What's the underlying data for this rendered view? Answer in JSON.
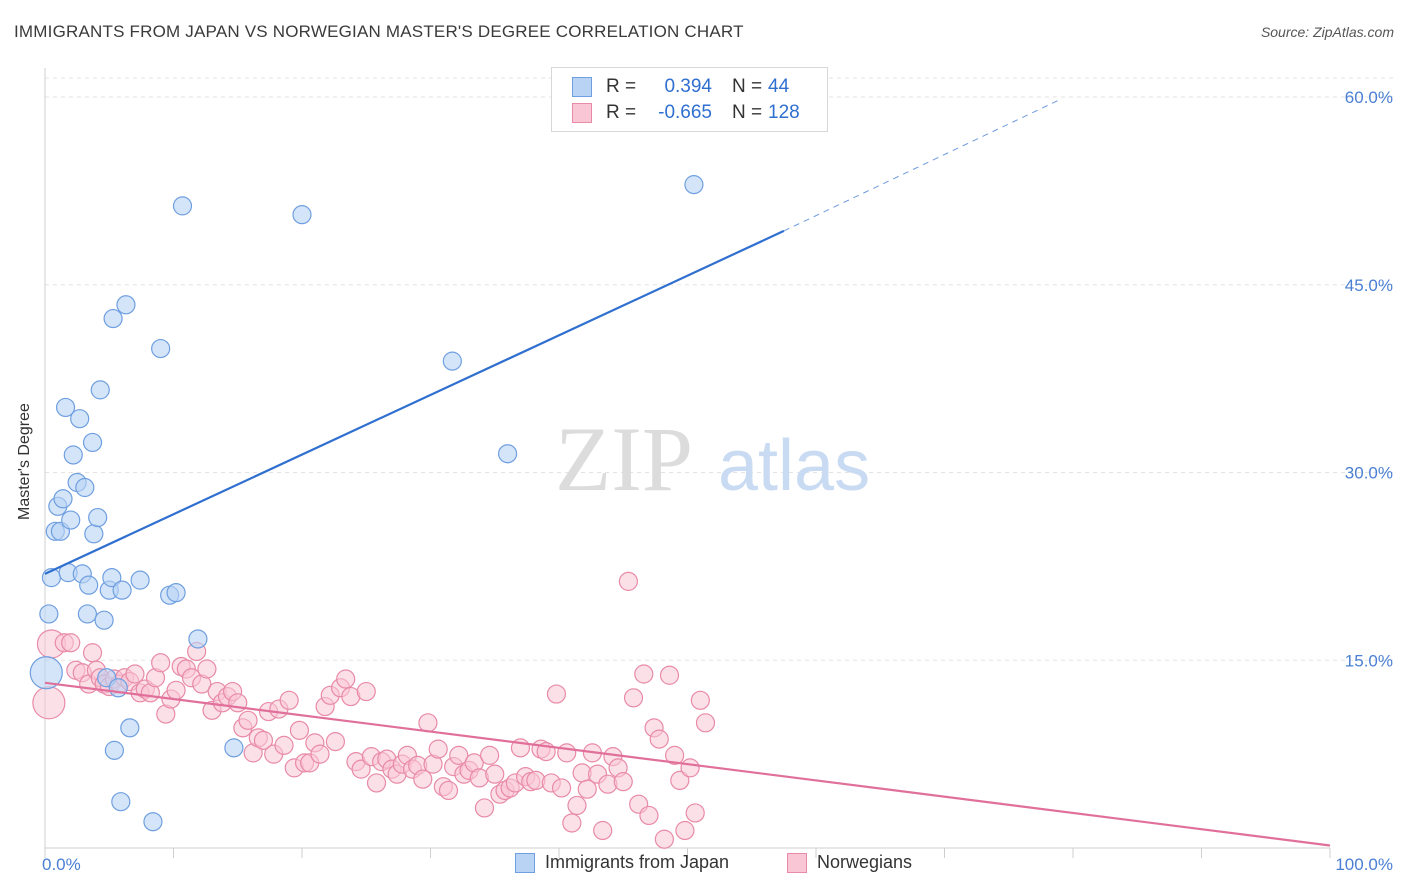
{
  "title": "IMMIGRANTS FROM JAPAN VS NORWEGIAN MASTER'S DEGREE CORRELATION CHART",
  "source": "Source: ZipAtlas.com",
  "watermark": {
    "zip": "ZIP",
    "atlas": "atlas"
  },
  "legend": {
    "rows": [
      {
        "r_label": "R =",
        "r_value": "0.394",
        "n_label": "N =",
        "n_value": "44",
        "color": "#b9d3f5",
        "border": "#6f9fe0"
      },
      {
        "r_label": "R =",
        "r_value": "-0.665",
        "n_label": "N =",
        "n_value": "128",
        "color": "#f9c6d6",
        "border": "#e88aa8"
      }
    ]
  },
  "bottom_legend": [
    "Immigrants from Japan",
    "Norwegians"
  ],
  "colors": {
    "blue_fill": "#b9d3f5",
    "blue_stroke": "#6f9fe0",
    "blue_line": "#2f6fd0",
    "pink_fill": "#f9c6d6",
    "pink_stroke": "#e88aa8",
    "pink_line": "#e0709a",
    "grid": "#e3e3e3",
    "tick_text": "#4a7fd4"
  },
  "chart_data": {
    "type": "scatter",
    "title": "IMMIGRANTS FROM JAPAN VS NORWEGIAN MASTER'S DEGREE CORRELATION CHART",
    "xlabel": "",
    "ylabel": "Master's Degree",
    "xlim": [
      0,
      100
    ],
    "ylim": [
      0,
      60
    ],
    "x_tick_labels": [
      "0.0%",
      "100.0%"
    ],
    "y_ticks": [
      15,
      30,
      45,
      60
    ],
    "y_tick_labels": [
      "15.0%",
      "30.0%",
      "45.0%",
      "60.0%"
    ],
    "grid": true,
    "series": [
      {
        "name": "Immigrants from Japan",
        "points": [
          [
            0.1,
            14.0
          ],
          [
            0.3,
            18.7
          ],
          [
            0.5,
            21.6
          ],
          [
            0.8,
            25.3
          ],
          [
            1.0,
            27.3
          ],
          [
            1.2,
            25.3
          ],
          [
            1.4,
            27.9
          ],
          [
            1.6,
            35.2
          ],
          [
            1.8,
            22.0
          ],
          [
            2.0,
            26.2
          ],
          [
            2.2,
            31.4
          ],
          [
            2.5,
            29.2
          ],
          [
            2.7,
            34.3
          ],
          [
            2.9,
            21.9
          ],
          [
            3.1,
            28.8
          ],
          [
            3.3,
            18.7
          ],
          [
            3.4,
            21.0
          ],
          [
            3.7,
            32.4
          ],
          [
            3.8,
            25.1
          ],
          [
            4.1,
            26.4
          ],
          [
            4.3,
            36.6
          ],
          [
            4.6,
            18.2
          ],
          [
            4.8,
            13.6
          ],
          [
            5.0,
            20.6
          ],
          [
            5.2,
            21.6
          ],
          [
            5.4,
            7.8
          ],
          [
            5.7,
            12.8
          ],
          [
            5.9,
            3.7
          ],
          [
            6.0,
            20.6
          ],
          [
            6.3,
            43.4
          ],
          [
            6.6,
            9.6
          ],
          [
            7.4,
            21.4
          ],
          [
            8.4,
            2.1
          ],
          [
            9.0,
            39.9
          ],
          [
            9.7,
            20.2
          ],
          [
            10.2,
            20.4
          ],
          [
            10.7,
            51.3
          ],
          [
            11.9,
            16.7
          ],
          [
            14.7,
            8.0
          ],
          [
            20.0,
            50.6
          ],
          [
            31.7,
            38.9
          ],
          [
            36.0,
            31.5
          ],
          [
            50.5,
            53.0
          ],
          [
            5.3,
            42.3
          ]
        ],
        "trend": {
          "x0": 0,
          "y0": 21.9,
          "x1": 57.5,
          "y1": 49.3,
          "dash_to_x": 79,
          "dash_to_y": 59.8
        }
      },
      {
        "name": "Norwegians",
        "points": [
          [
            0.3,
            11.6
          ],
          [
            0.5,
            16.3
          ],
          [
            1.5,
            16.4
          ],
          [
            2.0,
            16.4
          ],
          [
            2.4,
            14.2
          ],
          [
            2.9,
            14.0
          ],
          [
            3.4,
            13.1
          ],
          [
            3.7,
            15.6
          ],
          [
            4.0,
            14.2
          ],
          [
            4.3,
            13.6
          ],
          [
            4.6,
            13.1
          ],
          [
            5.0,
            12.9
          ],
          [
            5.4,
            13.5
          ],
          [
            5.8,
            13.1
          ],
          [
            6.2,
            13.6
          ],
          [
            6.6,
            13.3
          ],
          [
            7.0,
            13.9
          ],
          [
            7.4,
            12.4
          ],
          [
            7.8,
            12.7
          ],
          [
            8.2,
            12.4
          ],
          [
            8.6,
            13.6
          ],
          [
            9.0,
            14.8
          ],
          [
            9.4,
            10.7
          ],
          [
            9.8,
            11.9
          ],
          [
            10.2,
            12.6
          ],
          [
            10.6,
            14.5
          ],
          [
            11.0,
            14.3
          ],
          [
            11.4,
            13.6
          ],
          [
            11.8,
            15.7
          ],
          [
            12.2,
            13.1
          ],
          [
            12.6,
            14.3
          ],
          [
            13.0,
            11.0
          ],
          [
            13.4,
            12.5
          ],
          [
            13.8,
            11.6
          ],
          [
            14.2,
            12.1
          ],
          [
            14.6,
            12.5
          ],
          [
            15.0,
            11.6
          ],
          [
            15.4,
            9.6
          ],
          [
            15.8,
            10.2
          ],
          [
            16.2,
            7.6
          ],
          [
            16.6,
            8.8
          ],
          [
            17.0,
            8.6
          ],
          [
            17.4,
            10.9
          ],
          [
            17.8,
            7.5
          ],
          [
            18.2,
            11.1
          ],
          [
            18.6,
            8.2
          ],
          [
            19.0,
            11.8
          ],
          [
            19.4,
            6.4
          ],
          [
            19.8,
            9.4
          ],
          [
            20.2,
            6.8
          ],
          [
            20.6,
            6.8
          ],
          [
            21.0,
            8.4
          ],
          [
            21.4,
            7.5
          ],
          [
            21.8,
            11.3
          ],
          [
            22.2,
            12.2
          ],
          [
            22.6,
            8.5
          ],
          [
            23.0,
            12.8
          ],
          [
            23.4,
            13.5
          ],
          [
            23.8,
            12.1
          ],
          [
            24.2,
            6.9
          ],
          [
            24.6,
            6.3
          ],
          [
            25.0,
            12.5
          ],
          [
            25.4,
            7.3
          ],
          [
            25.8,
            5.2
          ],
          [
            26.2,
            6.9
          ],
          [
            26.6,
            7.1
          ],
          [
            27.0,
            6.3
          ],
          [
            27.4,
            5.9
          ],
          [
            27.8,
            6.7
          ],
          [
            28.2,
            7.4
          ],
          [
            28.6,
            6.3
          ],
          [
            29.0,
            6.6
          ],
          [
            29.4,
            5.5
          ],
          [
            29.8,
            10.0
          ],
          [
            30.2,
            6.7
          ],
          [
            30.6,
            7.9
          ],
          [
            31.0,
            4.9
          ],
          [
            31.4,
            4.6
          ],
          [
            31.8,
            6.5
          ],
          [
            32.2,
            7.4
          ],
          [
            32.6,
            5.9
          ],
          [
            33.0,
            6.2
          ],
          [
            33.4,
            6.8
          ],
          [
            33.8,
            5.6
          ],
          [
            34.2,
            3.2
          ],
          [
            34.6,
            7.4
          ],
          [
            35.0,
            5.9
          ],
          [
            35.4,
            4.3
          ],
          [
            35.8,
            4.6
          ],
          [
            36.2,
            4.8
          ],
          [
            36.6,
            5.2
          ],
          [
            37.0,
            8.0
          ],
          [
            37.4,
            5.7
          ],
          [
            37.8,
            5.3
          ],
          [
            38.2,
            5.4
          ],
          [
            38.6,
            7.9
          ],
          [
            39.0,
            7.7
          ],
          [
            39.4,
            5.2
          ],
          [
            39.8,
            12.3
          ],
          [
            40.2,
            4.8
          ],
          [
            40.6,
            7.6
          ],
          [
            41.0,
            2.0
          ],
          [
            41.4,
            3.4
          ],
          [
            41.8,
            6.0
          ],
          [
            42.2,
            4.7
          ],
          [
            42.6,
            7.6
          ],
          [
            43.0,
            5.9
          ],
          [
            43.4,
            1.4
          ],
          [
            43.8,
            5.1
          ],
          [
            44.2,
            7.3
          ],
          [
            44.6,
            6.4
          ],
          [
            45.0,
            5.3
          ],
          [
            45.4,
            21.3
          ],
          [
            45.8,
            12.0
          ],
          [
            46.2,
            3.5
          ],
          [
            46.6,
            13.9
          ],
          [
            47.0,
            2.6
          ],
          [
            47.4,
            9.6
          ],
          [
            47.8,
            8.7
          ],
          [
            48.2,
            0.7
          ],
          [
            48.6,
            13.8
          ],
          [
            49.0,
            7.4
          ],
          [
            49.4,
            5.4
          ],
          [
            49.8,
            1.4
          ],
          [
            50.2,
            6.4
          ],
          [
            50.6,
            2.8
          ],
          [
            51.0,
            11.8
          ],
          [
            51.4,
            10.0
          ]
        ],
        "trend": {
          "x0": 0,
          "y0": 13.2,
          "x1": 100,
          "y1": 0.2
        }
      }
    ]
  }
}
